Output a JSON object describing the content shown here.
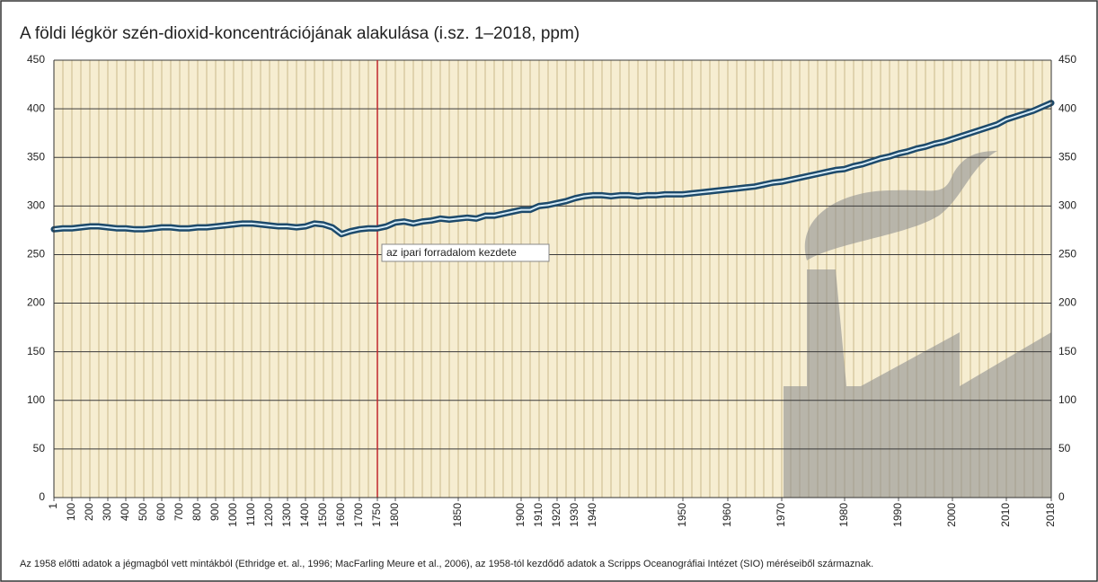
{
  "chart_data": {
    "type": "line",
    "title": "A földi légkör szén-dioxid-koncentrációjának alakulása (i.sz. 1–2018, ppm)",
    "footnote": "Az 1958 előtti adatok a jégmagból vett mintákból (Ethridge et. al., 1996; MacFarling Meure et al., 2006), az 1958-tól kezdődő adatok a Scripps Oceanográfiai Intézet (SIO) méréseiből származnak.",
    "categories": [
      "1",
      null,
      "100",
      null,
      "200",
      null,
      "300",
      null,
      "400",
      null,
      "500",
      null,
      "600",
      null,
      "700",
      null,
      "800",
      null,
      "900",
      null,
      "1000",
      null,
      "1100",
      null,
      "1200",
      null,
      "1300",
      null,
      "1400",
      null,
      "1500",
      null,
      "1600",
      null,
      "1700",
      null,
      "1750",
      null,
      "1800",
      null,
      null,
      null,
      null,
      null,
      null,
      "1850",
      null,
      null,
      null,
      null,
      null,
      null,
      "1900",
      null,
      "1910",
      null,
      "1920",
      null,
      "1930",
      null,
      "1940",
      null,
      null,
      null,
      null,
      null,
      null,
      null,
      null,
      null,
      "1950",
      null,
      null,
      null,
      null,
      "1960",
      null,
      null,
      null,
      null,
      null,
      "1970",
      null,
      null,
      null,
      null,
      null,
      null,
      "1980",
      null,
      null,
      null,
      null,
      null,
      "1990",
      null,
      null,
      null,
      null,
      null,
      "2000",
      null,
      null,
      null,
      null,
      null,
      "2010",
      null,
      null,
      null,
      null,
      "2018"
    ],
    "values": [
      276,
      277,
      277,
      278,
      279,
      279,
      278,
      277,
      277,
      276,
      276,
      277,
      278,
      278,
      277,
      277,
      278,
      278,
      279,
      280,
      281,
      282,
      282,
      281,
      280,
      279,
      279,
      278,
      279,
      282,
      281,
      278,
      271,
      274,
      276,
      277,
      277,
      279,
      283,
      284,
      282,
      284,
      285,
      287,
      286,
      287,
      288,
      287,
      290,
      290,
      292,
      294,
      296,
      296,
      300,
      301,
      303,
      305,
      308,
      310,
      311,
      311,
      310,
      311,
      311,
      310,
      311,
      311,
      312,
      312,
      312,
      313,
      314,
      315,
      316,
      317,
      318,
      319,
      320,
      322,
      324,
      325,
      327,
      329,
      331,
      333,
      335,
      337,
      338,
      341,
      343,
      346,
      349,
      351,
      354,
      356,
      359,
      361,
      364,
      366,
      369,
      372,
      375,
      378,
      381,
      384,
      389,
      392,
      395,
      398,
      402,
      406
    ],
    "color": "#1d4a6b",
    "ylim": [
      0,
      450
    ],
    "yticks": [
      0,
      50,
      100,
      150,
      200,
      250,
      300,
      350,
      400,
      450
    ],
    "grid": true,
    "right_axis": true,
    "annotation": {
      "category": "1750",
      "text": "az ipari forradalom kezdete",
      "color": "#c0262d"
    }
  }
}
